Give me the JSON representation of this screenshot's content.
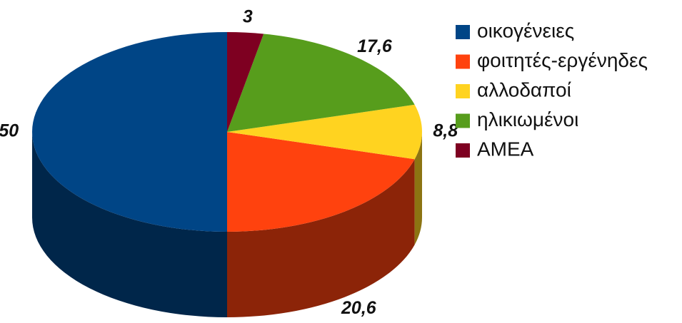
{
  "chart_data": {
    "type": "pie",
    "categories": [
      "οικογένειες",
      "φοιτητές-εργένηδες",
      "αλλοδαποί",
      "ηλικιωμένοι",
      "ΑΜΕΑ"
    ],
    "values": [
      50,
      20.6,
      8.8,
      17.6,
      3
    ],
    "value_labels": [
      "50",
      "20,6",
      "8,8",
      "17,6",
      "3"
    ],
    "colors": [
      "#004586",
      "#ff420e",
      "#ffd320",
      "#579d1c",
      "#7e0021"
    ],
    "legend": "right"
  }
}
